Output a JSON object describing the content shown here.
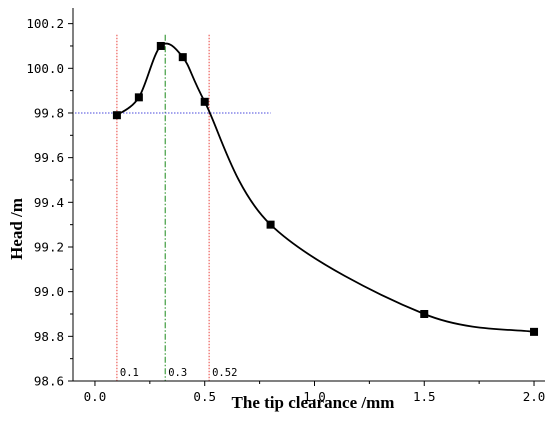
{
  "chart_data": {
    "type": "line",
    "xlabel": "The tip clearance /mm",
    "ylabel": "Head /m",
    "xlim": [
      -0.1,
      2.05
    ],
    "ylim": [
      98.6,
      100.27
    ],
    "xticks": [
      "0.0",
      "0.5",
      "1.0",
      "1.5",
      "2.0"
    ],
    "yticks": [
      "98.6",
      "98.8",
      "99.0",
      "99.2",
      "99.4",
      "99.6",
      "99.8",
      "100.0",
      "100.2"
    ],
    "grid": false,
    "legend": "none",
    "series": [
      {
        "x": [
          0.1,
          0.2,
          0.3,
          0.4,
          0.5,
          0.8,
          1.5,
          2.0
        ],
        "y": [
          99.79,
          99.87,
          100.1,
          100.05,
          99.85,
          99.3,
          98.9,
          98.82
        ],
        "color": "#000000",
        "marker": "square"
      }
    ],
    "reference_lines": {
      "vertical": [
        {
          "x": 0.1,
          "label": "0.1",
          "color": "#e8403a",
          "style": "dotted"
        },
        {
          "x": 0.32,
          "label": "0.3",
          "color": "#1a8a1a",
          "style": "dash-dot"
        },
        {
          "x": 0.52,
          "label": "0.52",
          "color": "#e8403a",
          "style": "dotted"
        }
      ],
      "horizontal": [
        {
          "y": 99.8,
          "x_end": 0.8,
          "color": "#4a4adc",
          "style": "dotted"
        }
      ]
    }
  }
}
